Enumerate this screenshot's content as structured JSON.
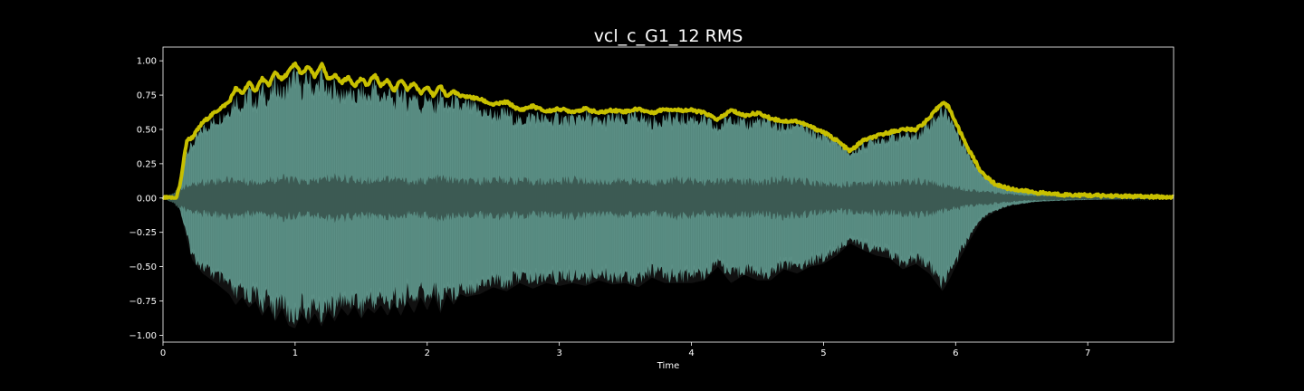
{
  "chart_data": {
    "type": "area",
    "title": "vcl_c_G1_12 RMS",
    "xlabel": "Time",
    "ylabel": "",
    "xlim": [
      0,
      7.65
    ],
    "ylim": [
      -1.05,
      1.1
    ],
    "x_ticks": [
      0,
      1,
      2,
      3,
      4,
      5,
      6,
      7
    ],
    "y_ticks": [
      -1.0,
      -0.75,
      -0.5,
      -0.25,
      0.0,
      0.25,
      0.5,
      0.75,
      1.0
    ],
    "x_tick_labels": [
      "0",
      "1",
      "2",
      "3",
      "4",
      "5",
      "6",
      "7"
    ],
    "y_tick_labels": [
      "−1.00",
      "−0.75",
      "−0.50",
      "−0.25",
      "0.00",
      "0.25",
      "0.50",
      "0.75",
      "1.00"
    ],
    "grid": false,
    "colors": {
      "background": "#000000",
      "axes": "#ffffff",
      "waveform_peak": "#5b8f85",
      "waveform_body": "#3c5a53",
      "negative_edge": "#111111",
      "rms_envelope": "#c8c000"
    },
    "series": [
      {
        "role": "waveform-upper-envelope",
        "x": [
          0,
          0.1,
          0.13,
          0.18,
          0.22,
          0.3,
          0.4,
          0.5,
          0.55,
          0.6,
          0.65,
          0.7,
          0.75,
          0.8,
          0.85,
          0.9,
          0.95,
          1.0,
          1.05,
          1.1,
          1.15,
          1.2,
          1.25,
          1.3,
          1.35,
          1.4,
          1.45,
          1.5,
          1.55,
          1.6,
          1.65,
          1.7,
          1.75,
          1.8,
          1.85,
          1.9,
          1.95,
          2.0,
          2.05,
          2.1,
          2.15,
          2.2,
          2.25,
          2.3,
          2.4,
          2.5,
          2.6,
          2.7,
          2.8,
          2.9,
          3.0,
          3.1,
          3.2,
          3.3,
          3.4,
          3.5,
          3.6,
          3.7,
          3.8,
          3.9,
          4.0,
          4.1,
          4.2,
          4.3,
          4.4,
          4.5,
          4.6,
          4.7,
          4.8,
          4.9,
          5.0,
          5.1,
          5.2,
          5.3,
          5.4,
          5.5,
          5.6,
          5.7,
          5.8,
          5.9,
          5.95,
          6.0,
          6.1,
          6.2,
          6.3,
          6.4,
          6.6,
          6.8,
          7.0,
          7.2,
          7.4,
          7.65
        ],
        "y": [
          0,
          0,
          0.1,
          0.38,
          0.42,
          0.55,
          0.62,
          0.7,
          0.8,
          0.72,
          0.85,
          0.75,
          0.87,
          0.78,
          0.92,
          0.82,
          0.9,
          0.99,
          0.86,
          0.96,
          0.85,
          0.98,
          0.82,
          0.9,
          0.8,
          0.87,
          0.78,
          0.86,
          0.8,
          0.9,
          0.79,
          0.85,
          0.75,
          0.87,
          0.76,
          0.84,
          0.72,
          0.82,
          0.7,
          0.83,
          0.71,
          0.78,
          0.72,
          0.74,
          0.7,
          0.66,
          0.68,
          0.61,
          0.66,
          0.62,
          0.64,
          0.62,
          0.66,
          0.6,
          0.64,
          0.62,
          0.66,
          0.6,
          0.64,
          0.63,
          0.64,
          0.62,
          0.55,
          0.66,
          0.58,
          0.62,
          0.6,
          0.56,
          0.6,
          0.52,
          0.5,
          0.46,
          0.35,
          0.42,
          0.47,
          0.48,
          0.5,
          0.5,
          0.6,
          0.7,
          0.66,
          0.55,
          0.35,
          0.18,
          0.12,
          0.08,
          0.04,
          0.02,
          0.015,
          0.01,
          0.008,
          0.006
        ]
      },
      {
        "role": "waveform-lower-envelope",
        "x": [
          0,
          0.1,
          0.13,
          0.18,
          0.22,
          0.3,
          0.4,
          0.5,
          0.55,
          0.6,
          0.65,
          0.7,
          0.75,
          0.8,
          0.85,
          0.9,
          0.95,
          1.0,
          1.05,
          1.1,
          1.15,
          1.2,
          1.25,
          1.3,
          1.35,
          1.4,
          1.45,
          1.5,
          1.55,
          1.6,
          1.65,
          1.7,
          1.75,
          1.8,
          1.85,
          1.9,
          1.95,
          2.0,
          2.05,
          2.1,
          2.15,
          2.2,
          2.25,
          2.3,
          2.4,
          2.5,
          2.6,
          2.7,
          2.8,
          2.9,
          3.0,
          3.1,
          3.2,
          3.3,
          3.4,
          3.5,
          3.6,
          3.7,
          3.8,
          3.9,
          4.0,
          4.1,
          4.2,
          4.3,
          4.4,
          4.5,
          4.6,
          4.7,
          4.8,
          4.9,
          5.0,
          5.1,
          5.2,
          5.3,
          5.4,
          5.5,
          5.6,
          5.7,
          5.8,
          5.9,
          5.95,
          6.0,
          6.1,
          6.2,
          6.3,
          6.4,
          6.6,
          6.8,
          7.0,
          7.2,
          7.4,
          7.65
        ],
        "y": [
          0,
          0,
          -0.1,
          -0.3,
          -0.45,
          -0.55,
          -0.62,
          -0.7,
          -0.78,
          -0.72,
          -0.8,
          -0.75,
          -0.86,
          -0.78,
          -0.9,
          -0.8,
          -0.93,
          -0.95,
          -0.84,
          -0.92,
          -0.84,
          -0.94,
          -0.82,
          -0.9,
          -0.8,
          -0.86,
          -0.78,
          -0.88,
          -0.8,
          -0.84,
          -0.78,
          -0.86,
          -0.76,
          -0.86,
          -0.75,
          -0.84,
          -0.72,
          -0.82,
          -0.7,
          -0.84,
          -0.7,
          -0.78,
          -0.7,
          -0.72,
          -0.7,
          -0.65,
          -0.68,
          -0.62,
          -0.66,
          -0.62,
          -0.64,
          -0.62,
          -0.64,
          -0.6,
          -0.63,
          -0.62,
          -0.65,
          -0.58,
          -0.62,
          -0.62,
          -0.62,
          -0.6,
          -0.5,
          -0.62,
          -0.56,
          -0.6,
          -0.6,
          -0.52,
          -0.55,
          -0.5,
          -0.48,
          -0.42,
          -0.33,
          -0.38,
          -0.42,
          -0.44,
          -0.52,
          -0.48,
          -0.55,
          -0.68,
          -0.6,
          -0.5,
          -0.32,
          -0.16,
          -0.1,
          -0.06,
          -0.03,
          -0.02,
          -0.015,
          -0.01,
          -0.008,
          -0.006
        ]
      },
      {
        "role": "waveform-inner-body",
        "x": [
          0,
          0.15,
          0.3,
          0.5,
          0.7,
          0.9,
          1.1,
          1.3,
          1.5,
          1.7,
          1.9,
          2.1,
          2.3,
          2.5,
          2.7,
          2.9,
          3.1,
          3.3,
          3.5,
          3.7,
          3.9,
          4.1,
          4.3,
          4.5,
          4.7,
          4.9,
          5.1,
          5.3,
          5.5,
          5.7,
          5.9,
          6.0,
          6.2,
          6.5,
          7.0,
          7.65
        ],
        "y": [
          0,
          0.08,
          0.12,
          0.14,
          0.12,
          0.15,
          0.12,
          0.16,
          0.13,
          0.15,
          0.12,
          0.15,
          0.12,
          0.14,
          0.13,
          0.12,
          0.14,
          0.12,
          0.13,
          0.12,
          0.14,
          0.12,
          0.13,
          0.12,
          0.14,
          0.12,
          0.1,
          0.12,
          0.11,
          0.13,
          0.1,
          0.08,
          0.05,
          0.02,
          0.01,
          0.005
        ]
      },
      {
        "role": "rms-envelope",
        "x": [
          0,
          0.1,
          0.13,
          0.18,
          0.22,
          0.3,
          0.4,
          0.5,
          0.55,
          0.6,
          0.65,
          0.7,
          0.75,
          0.8,
          0.85,
          0.9,
          0.95,
          1.0,
          1.05,
          1.1,
          1.15,
          1.2,
          1.25,
          1.3,
          1.35,
          1.4,
          1.45,
          1.5,
          1.55,
          1.6,
          1.65,
          1.7,
          1.75,
          1.8,
          1.85,
          1.9,
          1.95,
          2.0,
          2.05,
          2.1,
          2.15,
          2.2,
          2.25,
          2.3,
          2.4,
          2.5,
          2.6,
          2.7,
          2.8,
          2.9,
          3.0,
          3.1,
          3.2,
          3.3,
          3.4,
          3.5,
          3.6,
          3.7,
          3.8,
          3.9,
          4.0,
          4.1,
          4.2,
          4.3,
          4.4,
          4.5,
          4.6,
          4.7,
          4.8,
          4.9,
          5.0,
          5.1,
          5.2,
          5.3,
          5.4,
          5.5,
          5.6,
          5.7,
          5.8,
          5.9,
          5.95,
          6.0,
          6.1,
          6.2,
          6.3,
          6.4,
          6.6,
          6.8,
          7.0,
          7.2,
          7.4,
          7.65
        ],
        "y": [
          0,
          0,
          0.1,
          0.42,
          0.44,
          0.55,
          0.63,
          0.7,
          0.8,
          0.76,
          0.84,
          0.78,
          0.87,
          0.82,
          0.92,
          0.86,
          0.92,
          0.98,
          0.9,
          0.96,
          0.88,
          0.98,
          0.86,
          0.9,
          0.84,
          0.88,
          0.82,
          0.87,
          0.82,
          0.9,
          0.82,
          0.86,
          0.78,
          0.86,
          0.79,
          0.84,
          0.76,
          0.82,
          0.74,
          0.82,
          0.74,
          0.78,
          0.74,
          0.74,
          0.72,
          0.68,
          0.7,
          0.64,
          0.67,
          0.63,
          0.65,
          0.63,
          0.65,
          0.62,
          0.64,
          0.63,
          0.65,
          0.62,
          0.65,
          0.64,
          0.64,
          0.62,
          0.57,
          0.64,
          0.6,
          0.62,
          0.58,
          0.56,
          0.56,
          0.52,
          0.48,
          0.42,
          0.34,
          0.42,
          0.45,
          0.48,
          0.5,
          0.5,
          0.58,
          0.7,
          0.66,
          0.55,
          0.35,
          0.18,
          0.1,
          0.07,
          0.04,
          0.025,
          0.02,
          0.015,
          0.01,
          0.005
        ]
      }
    ]
  }
}
